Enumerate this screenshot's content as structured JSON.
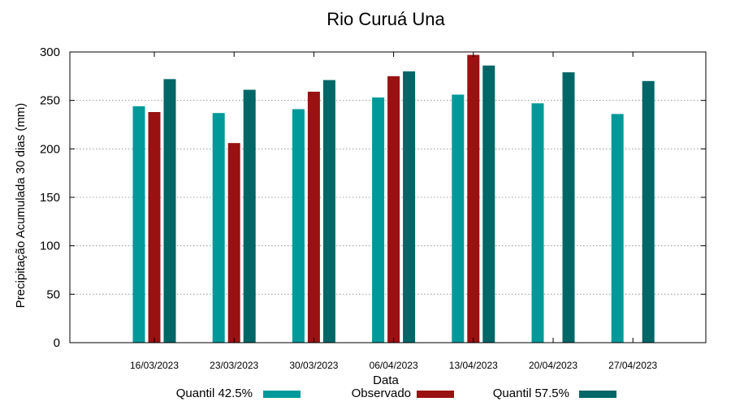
{
  "chart_data": {
    "type": "bar",
    "title": "Rio Curuá Una",
    "xlabel": "Data",
    "ylabel": "Precipitação Acumulada 30 dias (mm)",
    "ylim": [
      0,
      300
    ],
    "yticks": [
      "0",
      "50",
      "100",
      "150",
      "200",
      "250",
      "300"
    ],
    "grid": true,
    "legend_position": "bottom",
    "categories": [
      "16/03/2023",
      "23/03/2023",
      "30/03/2023",
      "06/04/2023",
      "13/04/2023",
      "20/04/2023",
      "27/04/2023"
    ],
    "series": [
      {
        "name": "Quantil 42.5%",
        "color": "#009999",
        "values": [
          244,
          237,
          241,
          253,
          256,
          247,
          236
        ]
      },
      {
        "name": "Observado",
        "color": "#991111",
        "values": [
          238,
          206,
          259,
          275,
          297,
          null,
          null
        ]
      },
      {
        "name": "Quantil 57.5%",
        "color": "#006666",
        "values": [
          272,
          261,
          271,
          280,
          286,
          279,
          270
        ]
      }
    ]
  }
}
